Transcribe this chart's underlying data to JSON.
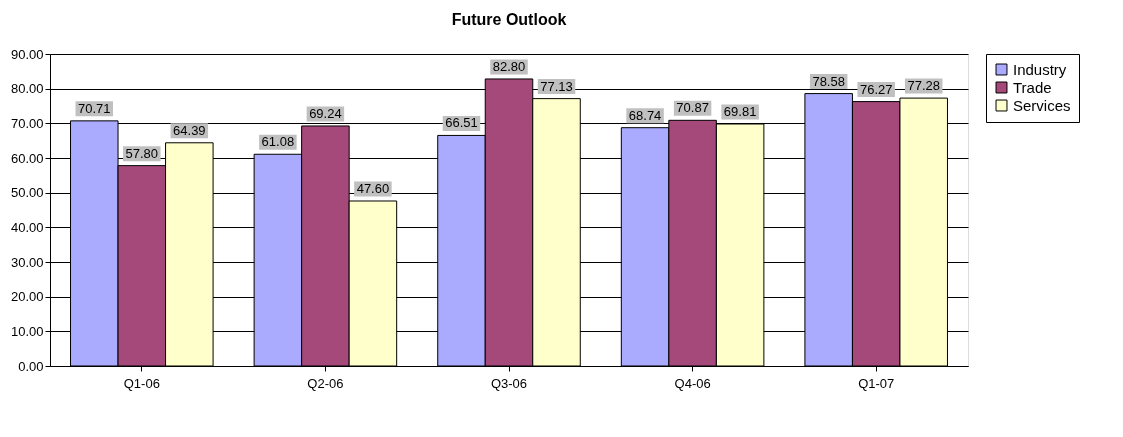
{
  "chart_data": {
    "type": "bar",
    "title": "Future Outlook",
    "categories": [
      "Q1-06",
      "Q2-06",
      "Q3-06",
      "Q4-06",
      "Q1-07"
    ],
    "series": [
      {
        "name": "Industry",
        "color": "#aaaaff",
        "values": [
          70.71,
          61.08,
          66.51,
          68.74,
          78.58
        ],
        "value_labels": [
          "70.71",
          "61.08",
          "66.51",
          "68.74",
          "78.58"
        ]
      },
      {
        "name": "Trade",
        "color": "#a4497a",
        "values": [
          57.8,
          69.24,
          82.8,
          70.87,
          76.27
        ],
        "value_labels": [
          "57.80",
          "69.24",
          "82.80",
          "70.87",
          "76.27"
        ]
      },
      {
        "name": "Services",
        "color": "#ffffcc",
        "values": [
          64.39,
          47.6,
          77.13,
          69.81,
          77.28
        ],
        "value_labels": [
          "64.39",
          "47.60",
          "77.13",
          "69.81",
          "77.28"
        ]
      }
    ],
    "ylim": [
      0,
      90
    ],
    "yticks": [
      {
        "value": 0,
        "label": "0.00"
      },
      {
        "value": 10,
        "label": "10.00"
      },
      {
        "value": 20,
        "label": "20.00"
      },
      {
        "value": 30,
        "label": "30.00"
      },
      {
        "value": 40,
        "label": "40.00"
      },
      {
        "value": 50,
        "label": "50.00"
      },
      {
        "value": 60,
        "label": "60.00"
      },
      {
        "value": 70,
        "label": "70.00"
      },
      {
        "value": 80,
        "label": "80.00"
      },
      {
        "value": 90,
        "label": "90.00"
      }
    ],
    "grid": "y",
    "legend": "right"
  }
}
